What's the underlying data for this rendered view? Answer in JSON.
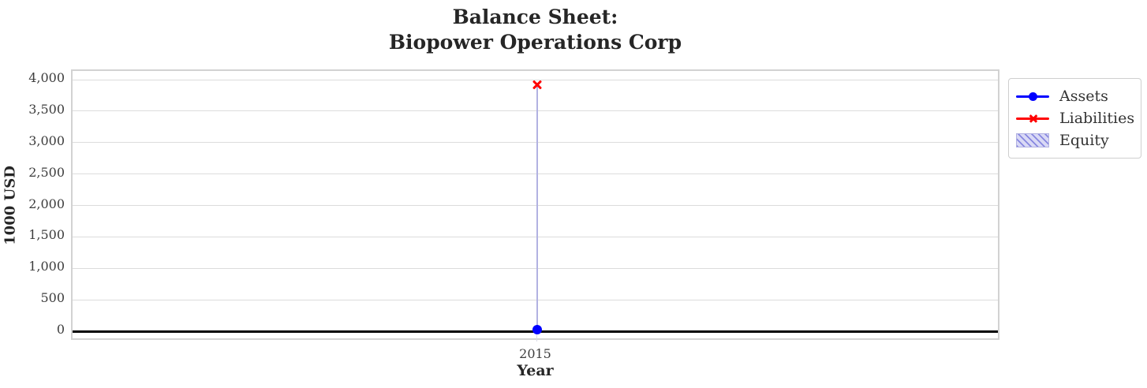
{
  "title": {
    "line1": "Balance Sheet:",
    "line2": "Biopower Operations Corp"
  },
  "axes": {
    "ylabel": "1000 USD",
    "xlabel": "Year",
    "xtick_label": "2015"
  },
  "legend": {
    "entries": [
      {
        "label": "Assets",
        "marker": "blue-line-circle",
        "color": "#0000ff"
      },
      {
        "label": "Liabilities",
        "marker": "red-line-x",
        "color": "#ff0000"
      },
      {
        "label": "Equity",
        "marker": "hatched-patch",
        "color": "#b2b2e2"
      }
    ]
  },
  "chart_data": {
    "type": "line",
    "title": "Balance Sheet: Biopower Operations Corp",
    "xlabel": "Year",
    "ylabel": "1000 USD",
    "x": [
      2015
    ],
    "xtick_labels": [
      "2015"
    ],
    "series": [
      {
        "name": "Assets",
        "values": [
          25
        ],
        "color": "#0000ff",
        "marker": "circle"
      },
      {
        "name": "Liabilities",
        "values": [
          3920
        ],
        "color": "#ff0000",
        "marker": "x"
      },
      {
        "name": "Equity",
        "style": "hatched-band",
        "band_from": [
          25
        ],
        "band_to": [
          3920
        ],
        "fill_color": "#d9d9f5",
        "edge_color": "#b2b2e2"
      }
    ],
    "ylim": [
      -163,
      4138
    ],
    "yticks": [
      0,
      500,
      1000,
      1500,
      2000,
      2500,
      3000,
      3500,
      4000
    ],
    "ytick_labels": [
      "0",
      "500",
      "1,000",
      "1,500",
      "2,000",
      "2,500",
      "3,000",
      "3,500",
      "4,000"
    ],
    "grid": true,
    "zero_line": true,
    "zero_line_color": "#000000",
    "grid_color": "#dcdcdc",
    "legend_position": "outside-top-right"
  }
}
